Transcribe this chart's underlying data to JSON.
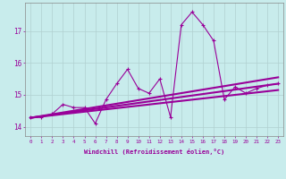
{
  "xlabel": "Windchill (Refroidissement éolien,°C)",
  "background_color": "#c8ecec",
  "line_color": "#990099",
  "grid_color": "#b0d0d0",
  "xlim": [
    -0.5,
    23.5
  ],
  "ylim": [
    13.7,
    17.9
  ],
  "xtick_labels": [
    "0",
    "1",
    "2",
    "3",
    "4",
    "5",
    "6",
    "7",
    "8",
    "9",
    "10",
    "11",
    "12",
    "13",
    "14",
    "15",
    "16",
    "17",
    "18",
    "19",
    "20",
    "21",
    "22",
    "23"
  ],
  "ytick_values": [
    14,
    15,
    16,
    17
  ],
  "lines": [
    {
      "x": [
        0,
        1,
        2,
        3,
        4,
        5,
        6,
        7,
        8,
        9,
        10,
        11,
        12,
        13,
        14,
        15,
        16,
        17,
        18,
        19,
        20,
        21,
        22,
        23
      ],
      "y": [
        14.3,
        14.3,
        14.4,
        14.7,
        14.6,
        14.6,
        14.1,
        14.85,
        15.35,
        15.8,
        15.2,
        15.05,
        15.5,
        14.3,
        17.2,
        17.6,
        17.2,
        16.7,
        14.85,
        15.25,
        15.05,
        15.2,
        15.3,
        15.35
      ],
      "marker": true
    },
    {
      "x": [
        0,
        23
      ],
      "y": [
        14.28,
        15.55
      ],
      "marker": false,
      "lw": 1.5
    },
    {
      "x": [
        0,
        23
      ],
      "y": [
        14.28,
        15.35
      ],
      "marker": false,
      "lw": 1.5
    },
    {
      "x": [
        0,
        23
      ],
      "y": [
        14.28,
        15.15
      ],
      "marker": false,
      "lw": 1.5
    }
  ]
}
